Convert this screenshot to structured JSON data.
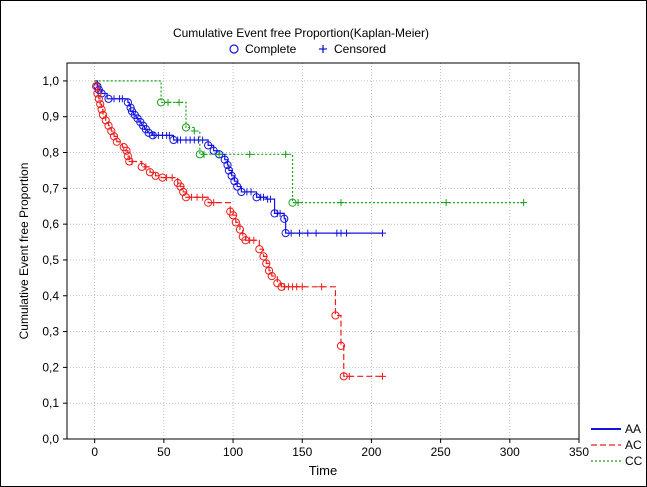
{
  "chart_data": {
    "type": "line",
    "subtype": "kaplan-meier",
    "title": "Cumulative Event free Proportion(Kaplan-Meier)",
    "xlabel": "Time",
    "ylabel": "Cumulative Event free Proportion",
    "xlim": [
      -20,
      350
    ],
    "ylim": [
      0,
      1.05
    ],
    "xticks": [
      0,
      50,
      100,
      150,
      200,
      250,
      300,
      350
    ],
    "yticks": [
      0,
      0.1,
      0.2,
      0.3,
      0.4,
      0.5,
      0.6,
      0.7,
      0.8,
      0.9,
      1.0
    ],
    "xtick_labels": [
      "0",
      "50",
      "100",
      "150",
      "200",
      "250",
      "300",
      "350"
    ],
    "ytick_labels": [
      "0,0",
      "0,1",
      "0,2",
      "0,3",
      "0,4",
      "0,5",
      "0,6",
      "0,7",
      "0,8",
      "0,9",
      "1,0"
    ],
    "grid": true,
    "marker_legend": {
      "position": "top",
      "complete_label": "Complete",
      "censored_label": "Censored"
    },
    "legend_position": "bottom-right",
    "series": [
      {
        "name": "AA",
        "color": "#1414e0",
        "dash": "solid",
        "steps": [
          [
            0,
            1.0
          ],
          [
            2,
            0.985
          ],
          [
            3,
            0.975
          ],
          [
            5,
            0.965
          ],
          [
            9,
            0.95
          ],
          [
            24,
            0.94
          ],
          [
            25,
            0.93
          ],
          [
            26,
            0.915
          ],
          [
            28,
            0.905
          ],
          [
            30,
            0.895
          ],
          [
            32,
            0.885
          ],
          [
            34,
            0.875
          ],
          [
            36,
            0.865
          ],
          [
            38,
            0.855
          ],
          [
            42,
            0.848
          ],
          [
            57,
            0.835
          ],
          [
            82,
            0.82
          ],
          [
            86,
            0.805
          ],
          [
            90,
            0.795
          ],
          [
            94,
            0.78
          ],
          [
            96,
            0.765
          ],
          [
            97,
            0.75
          ],
          [
            99,
            0.735
          ],
          [
            101,
            0.72
          ],
          [
            103,
            0.705
          ],
          [
            106,
            0.69
          ],
          [
            117,
            0.675
          ],
          [
            124,
            0.67
          ],
          [
            130,
            0.63
          ],
          [
            137,
            0.615
          ],
          [
            138,
            0.575
          ]
        ],
        "x_end": 208,
        "complete": [
          [
            2,
            0.985
          ],
          [
            3,
            0.975
          ],
          [
            5,
            0.965
          ],
          [
            10,
            0.95
          ],
          [
            24,
            0.94
          ],
          [
            26,
            0.925
          ],
          [
            27,
            0.915
          ],
          [
            29,
            0.905
          ],
          [
            31,
            0.895
          ],
          [
            33,
            0.885
          ],
          [
            35,
            0.875
          ],
          [
            37,
            0.865
          ],
          [
            39,
            0.855
          ],
          [
            42,
            0.848
          ],
          [
            57,
            0.835
          ],
          [
            82,
            0.82
          ],
          [
            86,
            0.805
          ],
          [
            90,
            0.795
          ],
          [
            94,
            0.78
          ],
          [
            96,
            0.765
          ],
          [
            97,
            0.75
          ],
          [
            99,
            0.735
          ],
          [
            101,
            0.72
          ],
          [
            103,
            0.705
          ],
          [
            106,
            0.69
          ],
          [
            117,
            0.675
          ],
          [
            130,
            0.63
          ],
          [
            137,
            0.615
          ],
          [
            138,
            0.575
          ]
        ],
        "censored": [
          [
            14,
            0.95
          ],
          [
            18,
            0.95
          ],
          [
            20,
            0.95
          ],
          [
            43,
            0.848
          ],
          [
            46,
            0.848
          ],
          [
            49,
            0.848
          ],
          [
            52,
            0.848
          ],
          [
            54,
            0.848
          ],
          [
            60,
            0.835
          ],
          [
            62,
            0.835
          ],
          [
            66,
            0.835
          ],
          [
            69,
            0.835
          ],
          [
            72,
            0.835
          ],
          [
            75,
            0.835
          ],
          [
            78,
            0.835
          ],
          [
            110,
            0.69
          ],
          [
            113,
            0.69
          ],
          [
            120,
            0.675
          ],
          [
            122,
            0.675
          ],
          [
            125,
            0.67
          ],
          [
            127,
            0.67
          ],
          [
            132,
            0.63
          ],
          [
            134,
            0.63
          ],
          [
            142,
            0.575
          ],
          [
            148,
            0.575
          ],
          [
            154,
            0.575
          ],
          [
            160,
            0.575
          ],
          [
            175,
            0.575
          ],
          [
            178,
            0.575
          ],
          [
            182,
            0.575
          ],
          [
            208,
            0.575
          ]
        ]
      },
      {
        "name": "AC",
        "color": "#ee1c1c",
        "dash": "6,3",
        "steps": [
          [
            0,
            1.0
          ],
          [
            1,
            0.985
          ],
          [
            2,
            0.965
          ],
          [
            3,
            0.95
          ],
          [
            4,
            0.935
          ],
          [
            5,
            0.92
          ],
          [
            6,
            0.905
          ],
          [
            8,
            0.89
          ],
          [
            10,
            0.875
          ],
          [
            12,
            0.86
          ],
          [
            14,
            0.845
          ],
          [
            16,
            0.83
          ],
          [
            20,
            0.815
          ],
          [
            22,
            0.805
          ],
          [
            24,
            0.79
          ],
          [
            25,
            0.775
          ],
          [
            34,
            0.76
          ],
          [
            40,
            0.745
          ],
          [
            44,
            0.735
          ],
          [
            48,
            0.73
          ],
          [
            60,
            0.715
          ],
          [
            62,
            0.705
          ],
          [
            64,
            0.69
          ],
          [
            66,
            0.675
          ],
          [
            82,
            0.66
          ],
          [
            98,
            0.635
          ],
          [
            100,
            0.625
          ],
          [
            102,
            0.605
          ],
          [
            105,
            0.585
          ],
          [
            107,
            0.565
          ],
          [
            109,
            0.555
          ],
          [
            119,
            0.53
          ],
          [
            122,
            0.51
          ],
          [
            124,
            0.49
          ],
          [
            126,
            0.47
          ],
          [
            128,
            0.455
          ],
          [
            132,
            0.435
          ],
          [
            135,
            0.425
          ],
          [
            174,
            0.345
          ],
          [
            178,
            0.26
          ],
          [
            180,
            0.175
          ]
        ],
        "x_end": 208,
        "complete": [
          [
            1,
            0.985
          ],
          [
            2,
            0.965
          ],
          [
            3,
            0.95
          ],
          [
            4,
            0.935
          ],
          [
            5,
            0.92
          ],
          [
            6,
            0.905
          ],
          [
            8,
            0.89
          ],
          [
            10,
            0.875
          ],
          [
            12,
            0.86
          ],
          [
            14,
            0.845
          ],
          [
            16,
            0.83
          ],
          [
            21,
            0.815
          ],
          [
            23,
            0.805
          ],
          [
            24,
            0.79
          ],
          [
            25,
            0.775
          ],
          [
            34,
            0.76
          ],
          [
            40,
            0.745
          ],
          [
            44,
            0.735
          ],
          [
            49,
            0.73
          ],
          [
            60,
            0.715
          ],
          [
            62,
            0.705
          ],
          [
            64,
            0.69
          ],
          [
            66,
            0.675
          ],
          [
            82,
            0.66
          ],
          [
            98,
            0.635
          ],
          [
            100,
            0.625
          ],
          [
            102,
            0.605
          ],
          [
            105,
            0.585
          ],
          [
            107,
            0.565
          ],
          [
            109,
            0.555
          ],
          [
            119,
            0.53
          ],
          [
            122,
            0.51
          ],
          [
            124,
            0.49
          ],
          [
            126,
            0.47
          ],
          [
            128,
            0.455
          ],
          [
            132,
            0.435
          ],
          [
            135,
            0.425
          ],
          [
            174,
            0.345
          ],
          [
            178,
            0.26
          ],
          [
            180,
            0.175
          ]
        ],
        "censored": [
          [
            27,
            0.775
          ],
          [
            37,
            0.76
          ],
          [
            52,
            0.73
          ],
          [
            56,
            0.73
          ],
          [
            70,
            0.675
          ],
          [
            74,
            0.675
          ],
          [
            78,
            0.675
          ],
          [
            86,
            0.66
          ],
          [
            112,
            0.555
          ],
          [
            115,
            0.555
          ],
          [
            137,
            0.425
          ],
          [
            140,
            0.425
          ],
          [
            143,
            0.425
          ],
          [
            146,
            0.425
          ],
          [
            150,
            0.425
          ],
          [
            164,
            0.425
          ],
          [
            184,
            0.175
          ],
          [
            208,
            0.175
          ]
        ]
      },
      {
        "name": "CC",
        "color": "#1ca01c",
        "dash": "2,2",
        "steps": [
          [
            0,
            1.0
          ],
          [
            48,
            0.94
          ],
          [
            66,
            0.87
          ],
          [
            72,
            0.86
          ],
          [
            76,
            0.795
          ],
          [
            143,
            0.66
          ]
        ],
        "x_end": 310,
        "complete": [
          [
            48,
            0.94
          ],
          [
            66,
            0.87
          ],
          [
            76,
            0.795
          ],
          [
            143,
            0.66
          ]
        ],
        "censored": [
          [
            53,
            0.94
          ],
          [
            61,
            0.94
          ],
          [
            72,
            0.86
          ],
          [
            79,
            0.795
          ],
          [
            90,
            0.795
          ],
          [
            112,
            0.795
          ],
          [
            138,
            0.795
          ],
          [
            147,
            0.66
          ],
          [
            178,
            0.66
          ],
          [
            254,
            0.66
          ],
          [
            310,
            0.66
          ]
        ]
      }
    ]
  }
}
